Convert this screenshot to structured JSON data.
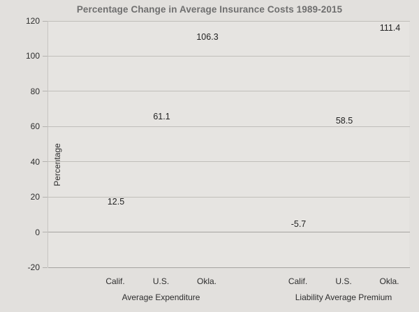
{
  "chart_data": {
    "type": "bar",
    "title": "Percentage Change in Average Insurance Costs 1989-2015",
    "xlabel": "",
    "ylabel": "Percentage",
    "ylim": [
      -20,
      120
    ],
    "yticks": [
      120,
      100,
      80,
      60,
      40,
      20,
      0,
      -20
    ],
    "grid": true,
    "legend": false,
    "groups": [
      {
        "label": "Average Expenditure",
        "categories": [
          "Calif.",
          "U.S.",
          "Okla."
        ],
        "values": [
          12.5,
          61.1,
          106.3
        ],
        "value_labels": [
          "12.5",
          "61.1",
          "106.3"
        ]
      },
      {
        "label": "Liability Average Premium",
        "categories": [
          "Calif.",
          "U.S.",
          "Okla."
        ],
        "values": [
          -5.7,
          58.5,
          111.4
        ],
        "value_labels": [
          "-5.7",
          "58.5",
          "111.4"
        ]
      }
    ]
  },
  "colors": {
    "bar_fill": "#80cec2",
    "figure_background": "#e2e0dd",
    "plot_background": "#e6e4e1",
    "gridline": "#c0beba",
    "zero_line": "#a5a3a0",
    "title_text": "#6f6f6f",
    "label_text": "#2d2d2d"
  }
}
